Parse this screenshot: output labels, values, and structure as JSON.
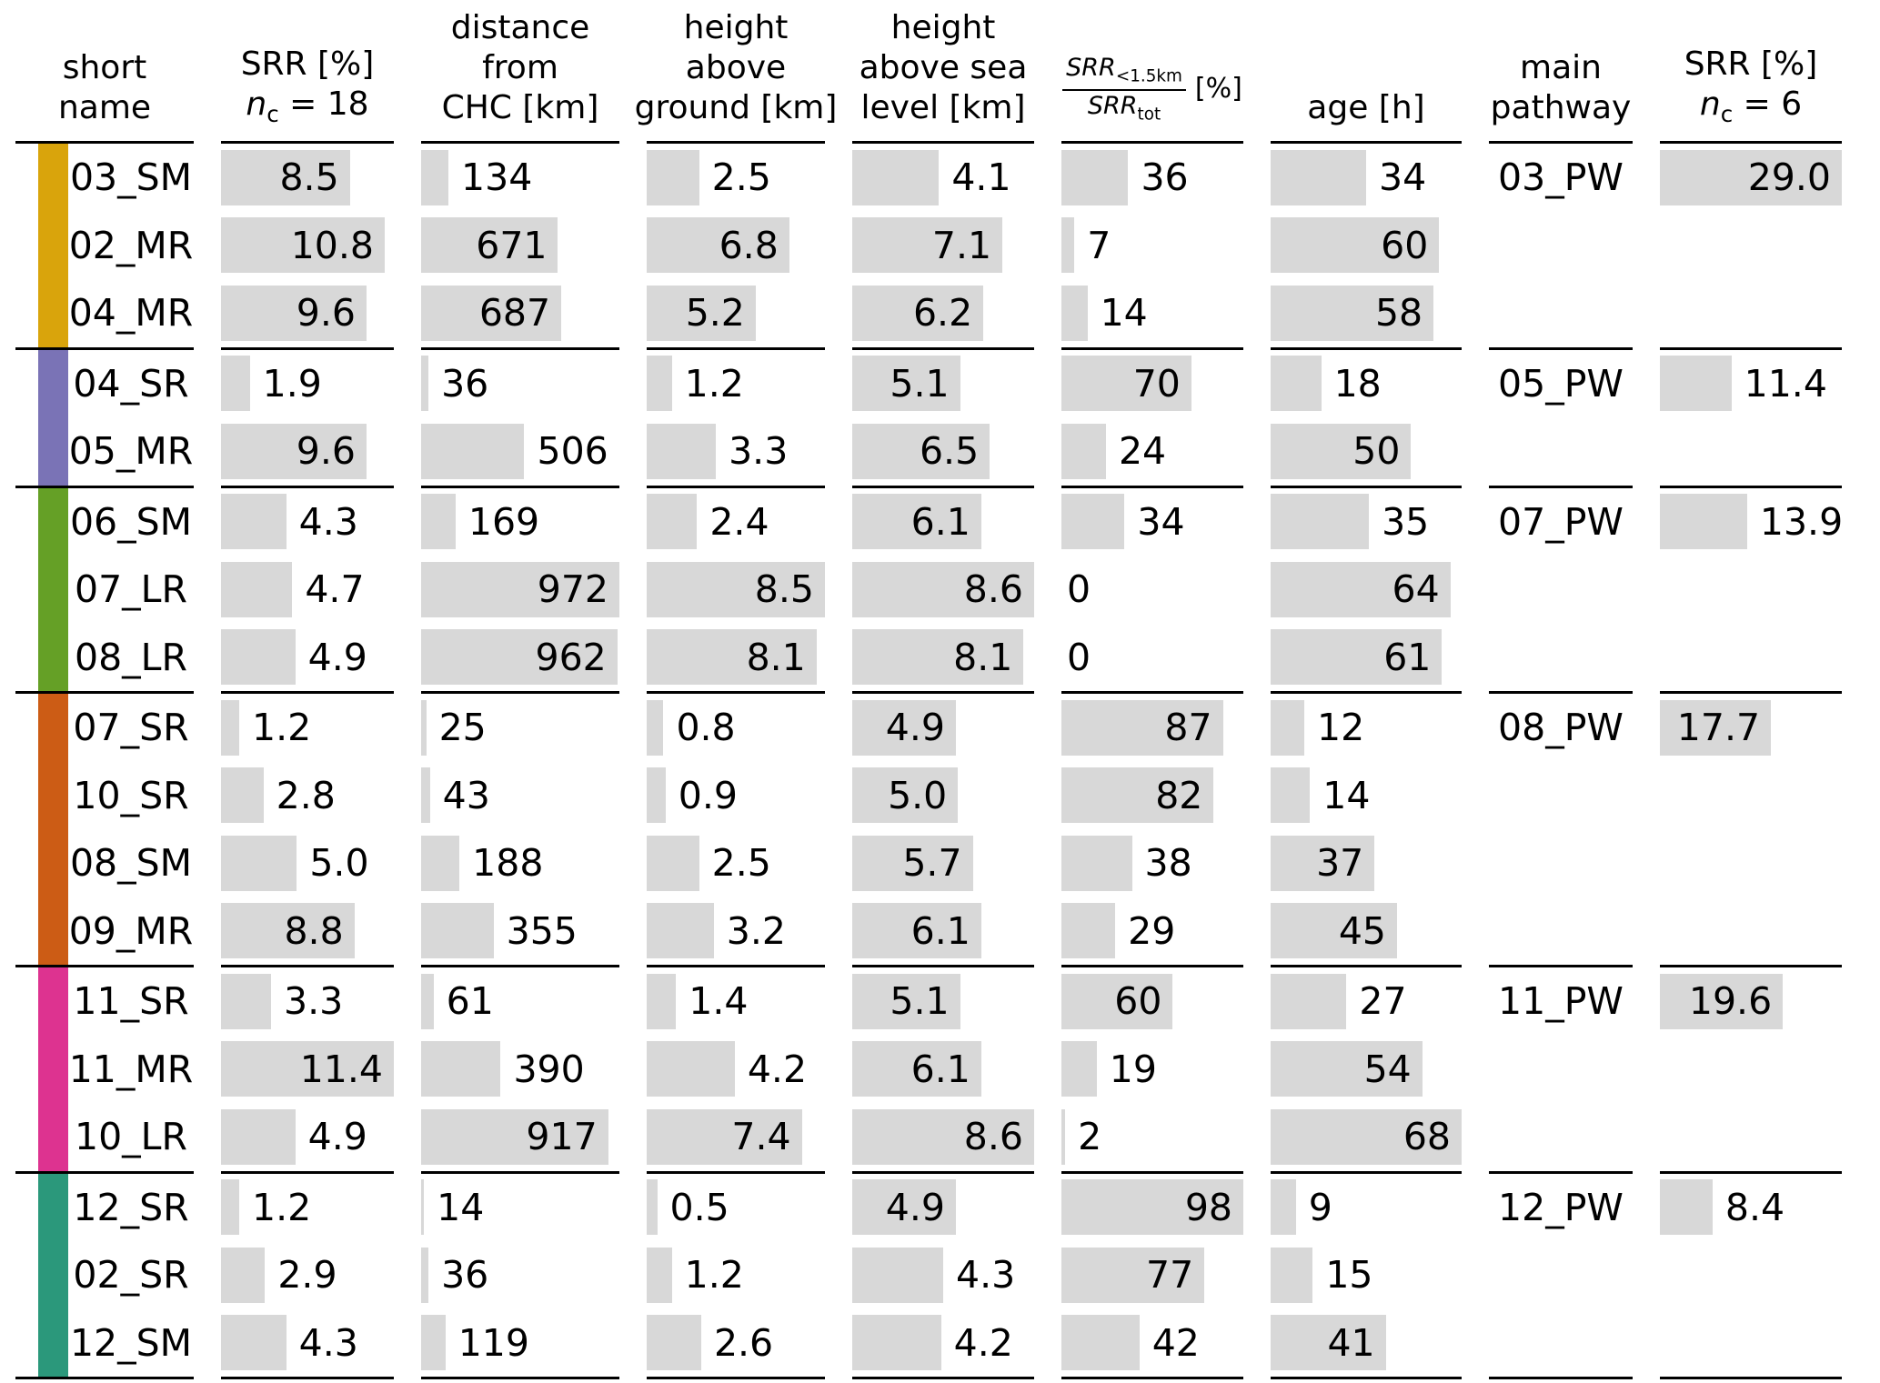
{
  "header": {
    "name": {
      "l1": "short",
      "l2": "name"
    },
    "srr18": {
      "l1": "SRR [%]",
      "n": "n",
      "nsub": "c",
      "eq": " = 18"
    },
    "distance": {
      "l1": "distance",
      "l2": "from",
      "l3": "CHC [km]"
    },
    "hag": {
      "l1": "height",
      "l2": "above",
      "l3": "ground [km]"
    },
    "hasl": {
      "l1": "height",
      "l2": "above sea",
      "l3": "level [km]"
    },
    "ratio": {
      "num": "SRR",
      "num_sub": "<1.5km",
      "den": "SRR",
      "den_sub": "tot",
      "unit": "[%]"
    },
    "age": {
      "l1": "age [h]"
    },
    "pathway": {
      "l1": "main",
      "l2": "pathway"
    },
    "srr6": {
      "l1": "SRR [%]",
      "n": "n",
      "nsub": "c",
      "eq": " = 6"
    }
  },
  "chart_data": {
    "type": "table",
    "bar_fill": "#d8d8d8",
    "rule_color": "#000000",
    "columns": [
      "short name",
      "SRR [%] nc=18",
      "distance from CHC [km]",
      "height above ground [km]",
      "height above sea level [km]",
      "SRR<1.5km/SRRtot [%]",
      "age [h]",
      "main pathway",
      "SRR [%] nc=6"
    ],
    "maxima": {
      "srr18": 11.4,
      "distance": 972,
      "height_above_ground": 8.5,
      "height_above_sea_level": 8.6,
      "srr_ratio": 98,
      "age": 68,
      "srr6": 29.0
    },
    "groups": [
      {
        "color": "#d9a40c",
        "main_pathway": "03_PW",
        "srr6": "29.0",
        "rows": [
          {
            "name": "03_SM",
            "srr18": "8.5",
            "distance": "134",
            "height_above_ground": "2.5",
            "height_above_sea_level": "4.1",
            "srr_ratio": "36",
            "age": "34"
          },
          {
            "name": "02_MR",
            "srr18": "10.8",
            "distance": "671",
            "height_above_ground": "6.8",
            "height_above_sea_level": "7.1",
            "srr_ratio": "7",
            "age": "60"
          },
          {
            "name": "04_MR",
            "srr18": "9.6",
            "distance": "687",
            "height_above_ground": "5.2",
            "height_above_sea_level": "6.2",
            "srr_ratio": "14",
            "age": "58"
          }
        ]
      },
      {
        "color": "#7a73b6",
        "main_pathway": "05_PW",
        "srr6": "11.4",
        "rows": [
          {
            "name": "04_SR",
            "srr18": "1.9",
            "distance": "36",
            "height_above_ground": "1.2",
            "height_above_sea_level": "5.1",
            "srr_ratio": "70",
            "age": "18"
          },
          {
            "name": "05_MR",
            "srr18": "9.6",
            "distance": "506",
            "height_above_ground": "3.3",
            "height_above_sea_level": "6.5",
            "srr_ratio": "24",
            "age": "50"
          }
        ]
      },
      {
        "color": "#65a026",
        "main_pathway": "07_PW",
        "srr6": "13.9",
        "rows": [
          {
            "name": "06_SM",
            "srr18": "4.3",
            "distance": "169",
            "height_above_ground": "2.4",
            "height_above_sea_level": "6.1",
            "srr_ratio": "34",
            "age": "35"
          },
          {
            "name": "07_LR",
            "srr18": "4.7",
            "distance": "972",
            "height_above_ground": "8.5",
            "height_above_sea_level": "8.6",
            "srr_ratio": "0",
            "age": "64"
          },
          {
            "name": "08_LR",
            "srr18": "4.9",
            "distance": "962",
            "height_above_ground": "8.1",
            "height_above_sea_level": "8.1",
            "srr_ratio": "0",
            "age": "61"
          }
        ]
      },
      {
        "color": "#cc5c15",
        "main_pathway": "08_PW",
        "srr6": "17.7",
        "rows": [
          {
            "name": "07_SR",
            "srr18": "1.2",
            "distance": "25",
            "height_above_ground": "0.8",
            "height_above_sea_level": "4.9",
            "srr_ratio": "87",
            "age": "12"
          },
          {
            "name": "10_SR",
            "srr18": "2.8",
            "distance": "43",
            "height_above_ground": "0.9",
            "height_above_sea_level": "5.0",
            "srr_ratio": "82",
            "age": "14"
          },
          {
            "name": "08_SM",
            "srr18": "5.0",
            "distance": "188",
            "height_above_ground": "2.5",
            "height_above_sea_level": "5.7",
            "srr_ratio": "38",
            "age": "37"
          },
          {
            "name": "09_MR",
            "srr18": "8.8",
            "distance": "355",
            "height_above_ground": "3.2",
            "height_above_sea_level": "6.1",
            "srr_ratio": "29",
            "age": "45"
          }
        ]
      },
      {
        "color": "#dd3390",
        "main_pathway": "11_PW",
        "srr6": "19.6",
        "rows": [
          {
            "name": "11_SR",
            "srr18": "3.3",
            "distance": "61",
            "height_above_ground": "1.4",
            "height_above_sea_level": "5.1",
            "srr_ratio": "60",
            "age": "27"
          },
          {
            "name": "11_MR",
            "srr18": "11.4",
            "distance": "390",
            "height_above_ground": "4.2",
            "height_above_sea_level": "6.1",
            "srr_ratio": "19",
            "age": "54"
          },
          {
            "name": "10_LR",
            "srr18": "4.9",
            "distance": "917",
            "height_above_ground": "7.4",
            "height_above_sea_level": "8.6",
            "srr_ratio": "2",
            "age": "68"
          }
        ]
      },
      {
        "color": "#2b987b",
        "main_pathway": "12_PW",
        "srr6": "8.4",
        "rows": [
          {
            "name": "12_SR",
            "srr18": "1.2",
            "distance": "14",
            "height_above_ground": "0.5",
            "height_above_sea_level": "4.9",
            "srr_ratio": "98",
            "age": "9"
          },
          {
            "name": "02_SR",
            "srr18": "2.9",
            "distance": "36",
            "height_above_ground": "1.2",
            "height_above_sea_level": "4.3",
            "srr_ratio": "77",
            "age": "15"
          },
          {
            "name": "12_SM",
            "srr18": "4.3",
            "distance": "119",
            "height_above_ground": "2.6",
            "height_above_sea_level": "4.2",
            "srr_ratio": "42",
            "age": "41"
          }
        ]
      }
    ]
  }
}
